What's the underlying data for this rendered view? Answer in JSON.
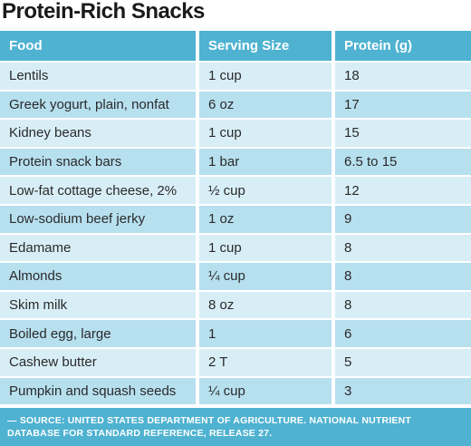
{
  "title": "Protein-Rich Snacks",
  "columns": [
    "Food",
    "Serving Size",
    "Protein (g)"
  ],
  "rows": [
    {
      "food": "Lentils",
      "serving": "1 cup",
      "protein": "18"
    },
    {
      "food": "Greek yogurt, plain, nonfat",
      "serving": "6 oz",
      "protein": "17"
    },
    {
      "food": "Kidney beans",
      "serving": "1 cup",
      "protein": "15"
    },
    {
      "food": "Protein snack bars",
      "serving": "1 bar",
      "protein": "6.5 to 15"
    },
    {
      "food": "Low-fat cottage cheese, 2%",
      "serving": "½ cup",
      "protein": "12"
    },
    {
      "food": "Low-sodium beef jerky",
      "serving": "1 oz",
      "protein": "9"
    },
    {
      "food": "Edamame",
      "serving": "1 cup",
      "protein": "8"
    },
    {
      "food": "Almonds",
      "serving": "¼ cup",
      "protein": "8"
    },
    {
      "food": "Skim milk",
      "serving": "8 oz",
      "protein": "8"
    },
    {
      "food": "Boiled egg, large",
      "serving": "1",
      "protein": "6"
    },
    {
      "food": "Cashew butter",
      "serving": "2 T",
      "protein": "5"
    },
    {
      "food": "Pumpkin and squash seeds",
      "serving": "¼ cup",
      "protein": "3"
    }
  ],
  "source": "— SOURCE: UNITED STATES DEPARTMENT OF AGRICULTURE. NATIONAL NUTRIENT DATABASE FOR STANDARD REFERENCE, RELEASE 27.",
  "colors": {
    "header": "#4fb2d1",
    "row_light": "#d8eef7",
    "row_dark": "#b7e0ef"
  }
}
